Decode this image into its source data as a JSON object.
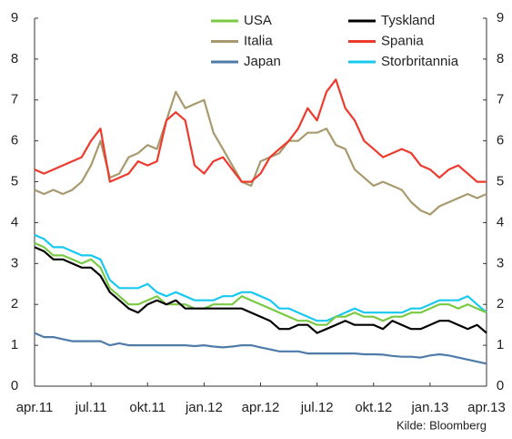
{
  "chart_data": {
    "type": "line",
    "categories": [
      "apr.11",
      null,
      null,
      null,
      null,
      null,
      "jul.11",
      null,
      null,
      null,
      null,
      null,
      "okt.11",
      null,
      null,
      null,
      null,
      null,
      "jan.12",
      null,
      null,
      null,
      null,
      null,
      "apr.12",
      null,
      null,
      null,
      null,
      null,
      "jul.12",
      null,
      null,
      null,
      null,
      null,
      "okt.12",
      null,
      null,
      null,
      null,
      null,
      "jan.13",
      null,
      null,
      null,
      null,
      null,
      "apr.13"
    ],
    "series": [
      {
        "name": "USA",
        "color": "#7ac943",
        "values": [
          3.5,
          3.4,
          3.2,
          3.2,
          3.1,
          3.0,
          3.1,
          2.9,
          2.4,
          2.2,
          2.0,
          2.0,
          2.1,
          2.2,
          2.0,
          2.0,
          2.0,
          1.9,
          1.9,
          2.0,
          2.0,
          2.0,
          2.2,
          2.1,
          2.0,
          1.9,
          1.8,
          1.7,
          1.6,
          1.6,
          1.5,
          1.5,
          1.7,
          1.7,
          1.8,
          1.7,
          1.7,
          1.6,
          1.7,
          1.7,
          1.8,
          1.8,
          1.9,
          2.0,
          2.0,
          1.9,
          2.0,
          1.9,
          1.8
        ]
      },
      {
        "name": "Tyskland",
        "color": "#000000",
        "values": [
          3.4,
          3.3,
          3.1,
          3.1,
          3.0,
          2.9,
          2.9,
          2.7,
          2.3,
          2.1,
          1.9,
          1.8,
          2.0,
          2.1,
          2.0,
          2.1,
          1.9,
          1.9,
          1.9,
          1.9,
          1.9,
          1.9,
          1.9,
          1.8,
          1.7,
          1.6,
          1.4,
          1.4,
          1.5,
          1.5,
          1.3,
          1.4,
          1.5,
          1.6,
          1.5,
          1.5,
          1.5,
          1.4,
          1.6,
          1.5,
          1.4,
          1.4,
          1.5,
          1.6,
          1.6,
          1.5,
          1.4,
          1.5,
          1.3
        ]
      },
      {
        "name": "Italia",
        "color": "#a89a6e",
        "values": [
          4.8,
          4.7,
          4.8,
          4.7,
          4.8,
          5.0,
          5.4,
          6.0,
          5.1,
          5.2,
          5.6,
          5.7,
          5.9,
          5.8,
          6.5,
          7.2,
          6.8,
          6.9,
          7.0,
          6.2,
          5.8,
          5.4,
          5.0,
          4.9,
          5.5,
          5.6,
          5.7,
          6.0,
          6.0,
          6.2,
          6.2,
          6.3,
          5.9,
          5.8,
          5.3,
          5.1,
          4.9,
          5.0,
          4.9,
          4.8,
          4.5,
          4.3,
          4.2,
          4.4,
          4.5,
          4.6,
          4.7,
          4.6,
          4.7
        ]
      },
      {
        "name": "Spania",
        "color": "#ee3a2c",
        "values": [
          5.3,
          5.2,
          5.3,
          5.4,
          5.5,
          5.6,
          6.0,
          6.3,
          5.0,
          5.1,
          5.2,
          5.5,
          5.4,
          5.5,
          6.5,
          6.7,
          6.5,
          5.4,
          5.2,
          5.5,
          5.6,
          5.3,
          5.0,
          5.0,
          5.2,
          5.6,
          5.8,
          6.0,
          6.3,
          6.8,
          6.5,
          7.2,
          7.5,
          6.8,
          6.5,
          6.0,
          5.8,
          5.6,
          5.7,
          5.8,
          5.7,
          5.4,
          5.3,
          5.1,
          5.3,
          5.4,
          5.2,
          5.0,
          5.0
        ]
      },
      {
        "name": "Japan",
        "color": "#4f7ba8",
        "values": [
          1.3,
          1.2,
          1.2,
          1.15,
          1.1,
          1.1,
          1.1,
          1.1,
          1.0,
          1.05,
          1.0,
          1.0,
          1.0,
          1.0,
          1.0,
          1.0,
          1.0,
          0.98,
          1.0,
          0.97,
          0.95,
          0.97,
          1.0,
          1.0,
          0.95,
          0.9,
          0.85,
          0.85,
          0.85,
          0.8,
          0.8,
          0.8,
          0.8,
          0.8,
          0.8,
          0.78,
          0.78,
          0.77,
          0.74,
          0.72,
          0.72,
          0.7,
          0.75,
          0.78,
          0.75,
          0.7,
          0.65,
          0.6,
          0.55
        ]
      },
      {
        "name": "Storbritannia",
        "color": "#18c8f0",
        "values": [
          3.7,
          3.6,
          3.4,
          3.4,
          3.3,
          3.2,
          3.2,
          3.1,
          2.6,
          2.4,
          2.4,
          2.4,
          2.5,
          2.3,
          2.2,
          2.3,
          2.2,
          2.1,
          2.1,
          2.1,
          2.2,
          2.2,
          2.3,
          2.3,
          2.2,
          2.1,
          1.9,
          1.9,
          1.8,
          1.7,
          1.6,
          1.6,
          1.7,
          1.8,
          1.9,
          1.8,
          1.8,
          1.8,
          1.8,
          1.8,
          1.9,
          1.9,
          2.0,
          2.1,
          2.1,
          2.1,
          2.2,
          2.0,
          1.8
        ]
      }
    ],
    "ylim": [
      0,
      9
    ],
    "yticks": [
      0,
      1,
      2,
      3,
      4,
      5,
      6,
      7,
      8,
      9
    ],
    "y2lim": [
      0,
      9
    ],
    "y2ticks": [
      0,
      1,
      2,
      3,
      4,
      5,
      6,
      7,
      8,
      9
    ],
    "grid": false,
    "legend": "top",
    "source": "Kilde: Bloomberg"
  }
}
